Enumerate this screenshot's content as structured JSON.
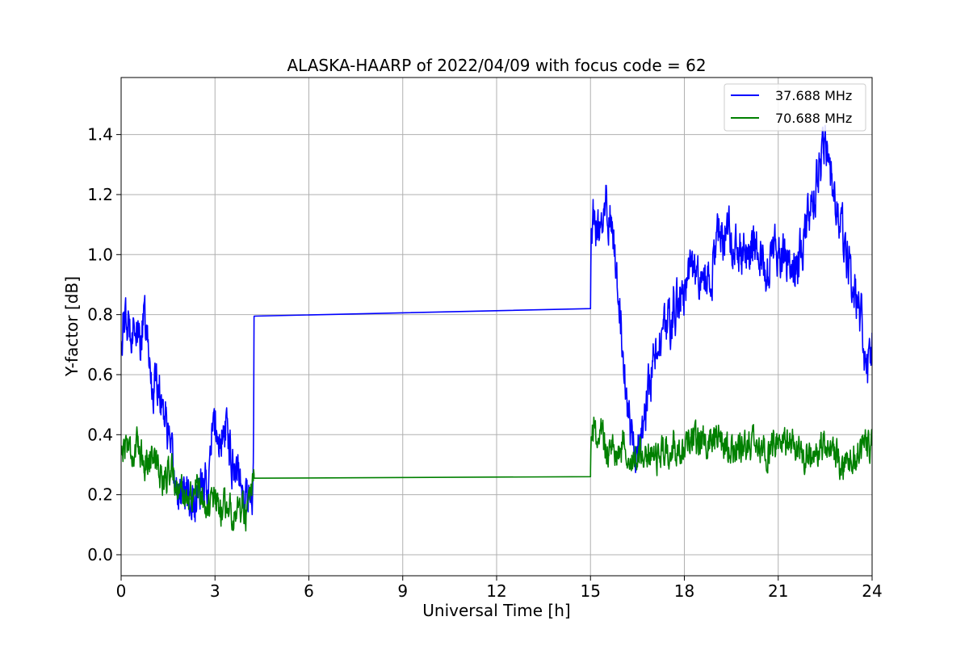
{
  "chart_data": {
    "type": "line",
    "title": "ALASKA-HAARP of 2022/04/09 with focus code = 62",
    "xlabel": "Universal Time [h]",
    "ylabel": "Y-factor [dB]",
    "xlim": [
      0,
      24
    ],
    "ylim": [
      -0.07,
      1.59
    ],
    "xticks": [
      0,
      3,
      6,
      9,
      12,
      15,
      18,
      21,
      24
    ],
    "xtick_labels": [
      "0",
      "3",
      "6",
      "9",
      "12",
      "15",
      "18",
      "21",
      "24"
    ],
    "yticks": [
      0.0,
      0.2,
      0.4,
      0.6,
      0.8,
      1.0,
      1.2,
      1.4
    ],
    "ytick_labels": [
      "0.0",
      "0.2",
      "0.4",
      "0.6",
      "0.8",
      "1.0",
      "1.2",
      "1.4"
    ],
    "grid": true,
    "legend_position": "top-right",
    "series": [
      {
        "name": "37.688 MHz",
        "color": "#0000ff",
        "x": [
          0,
          0.1,
          0.25,
          0.4,
          0.55,
          0.75,
          0.9,
          1.0,
          1.15,
          1.3,
          1.45,
          1.6,
          1.8,
          2.0,
          2.2,
          2.35,
          2.5,
          2.7,
          2.85,
          2.95,
          3.05,
          3.2,
          3.4,
          3.6,
          3.8,
          3.95,
          4.1,
          4.2,
          4.23,
          4.25,
          15.0,
          15.02,
          15.1,
          15.3,
          15.5,
          15.7,
          15.85,
          16.0,
          16.15,
          16.3,
          16.5,
          16.65,
          16.8,
          17.0,
          17.3,
          17.6,
          17.9,
          18.2,
          18.5,
          18.8,
          19.1,
          19.4,
          19.7,
          20.0,
          20.3,
          20.6,
          20.9,
          21.2,
          21.5,
          21.8,
          22.1,
          22.35,
          22.5,
          22.7,
          22.9,
          23.1,
          23.3,
          23.5,
          23.7,
          23.85,
          24.0
        ],
        "y": [
          0.72,
          0.78,
          0.74,
          0.8,
          0.7,
          0.78,
          0.65,
          0.55,
          0.6,
          0.52,
          0.45,
          0.3,
          0.22,
          0.2,
          0.18,
          0.17,
          0.2,
          0.22,
          0.3,
          0.45,
          0.4,
          0.38,
          0.42,
          0.3,
          0.28,
          0.2,
          0.18,
          0.22,
          0.3,
          0.795,
          0.82,
          1.1,
          1.12,
          1.05,
          1.15,
          1.1,
          0.95,
          0.75,
          0.55,
          0.4,
          0.35,
          0.4,
          0.5,
          0.65,
          0.72,
          0.8,
          0.85,
          0.95,
          0.92,
          0.9,
          1.05,
          1.08,
          1.02,
          1.0,
          1.05,
          0.95,
          1.02,
          0.98,
          0.95,
          1.05,
          1.15,
          1.3,
          1.38,
          1.25,
          1.15,
          1.05,
          0.95,
          0.85,
          0.75,
          0.6,
          0.7
        ]
      },
      {
        "name": "70.688 MHz",
        "color": "#008000",
        "x": [
          0,
          0.2,
          0.4,
          0.6,
          0.8,
          1.0,
          1.2,
          1.4,
          1.6,
          1.8,
          2.0,
          2.2,
          2.4,
          2.6,
          2.8,
          3.0,
          3.2,
          3.4,
          3.6,
          3.8,
          4.0,
          4.2,
          4.25,
          15.0,
          15.02,
          15.2,
          15.5,
          15.8,
          16.1,
          16.4,
          16.7,
          17.0,
          17.5,
          18.0,
          18.5,
          19.0,
          19.5,
          20.0,
          20.5,
          21.0,
          21.5,
          22.0,
          22.5,
          23.0,
          23.5,
          24.0
        ],
        "y": [
          0.35,
          0.38,
          0.33,
          0.36,
          0.3,
          0.35,
          0.28,
          0.25,
          0.3,
          0.22,
          0.2,
          0.18,
          0.22,
          0.2,
          0.16,
          0.18,
          0.15,
          0.17,
          0.14,
          0.16,
          0.12,
          0.2,
          0.255,
          0.26,
          0.38,
          0.42,
          0.36,
          0.33,
          0.38,
          0.3,
          0.35,
          0.32,
          0.36,
          0.34,
          0.38,
          0.4,
          0.35,
          0.37,
          0.34,
          0.38,
          0.35,
          0.33,
          0.36,
          0.3,
          0.35,
          0.38
        ]
      }
    ]
  }
}
